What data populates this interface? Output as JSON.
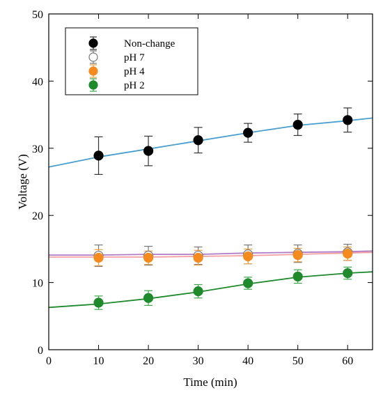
{
  "chart_data": {
    "type": "scatter",
    "xlabel": "Time (min)",
    "ylabel": "Voltage (V)",
    "xlim": [
      0,
      65
    ],
    "ylim": [
      0,
      50
    ],
    "xticks": [
      0,
      10,
      20,
      30,
      40,
      50,
      60
    ],
    "yticks": [
      0,
      10,
      20,
      30,
      40,
      50
    ],
    "grid": false,
    "legend_position": "top-left",
    "series": [
      {
        "name": "Non-change",
        "marker_color": "#000000",
        "errorbar_color": "#333333",
        "fit_color": "#4a9fd0",
        "x": [
          10,
          20,
          30,
          40,
          50,
          60
        ],
        "y": [
          28.9,
          29.6,
          31.2,
          32.3,
          33.5,
          34.2
        ],
        "yerr": [
          2.8,
          2.2,
          1.9,
          1.4,
          1.6,
          1.8
        ],
        "fit": [
          [
            0,
            27.2
          ],
          [
            10,
            28.7
          ],
          [
            20,
            29.9
          ],
          [
            30,
            31.1
          ],
          [
            40,
            32.3
          ],
          [
            50,
            33.4
          ],
          [
            60,
            34.1
          ],
          [
            65,
            34.5
          ]
        ]
      },
      {
        "name": "pH 7",
        "marker_color": "#ffffff",
        "errorbar_color": "#777777",
        "fit_color": "#b07cc6",
        "x": [
          10,
          20,
          30,
          40,
          50,
          60
        ],
        "y": [
          14.0,
          14.0,
          14.0,
          14.2,
          14.3,
          14.5
        ],
        "yerr": [
          1.6,
          1.4,
          1.3,
          1.4,
          1.3,
          1.2
        ],
        "fit": [
          [
            0,
            14.1
          ],
          [
            10,
            14.1
          ],
          [
            20,
            14.2
          ],
          [
            30,
            14.2
          ],
          [
            40,
            14.4
          ],
          [
            50,
            14.5
          ],
          [
            60,
            14.6
          ],
          [
            65,
            14.7
          ]
        ]
      },
      {
        "name": "pH 4",
        "marker_color": "#f58a1f",
        "errorbar_color": "#f0a040",
        "fit_color": "#f5a0a0",
        "x": [
          10,
          20,
          30,
          40,
          50,
          60
        ],
        "y": [
          13.7,
          13.7,
          13.7,
          13.9,
          14.1,
          14.3
        ],
        "yerr": [
          1.2,
          1.0,
          1.1,
          1.1,
          1.0,
          1.0
        ],
        "fit": [
          [
            0,
            13.8
          ],
          [
            10,
            13.8
          ],
          [
            20,
            13.8
          ],
          [
            30,
            13.9
          ],
          [
            40,
            14.0
          ],
          [
            50,
            14.2
          ],
          [
            60,
            14.4
          ],
          [
            65,
            14.5
          ]
        ]
      },
      {
        "name": "pH 2",
        "marker_color": "#1e8a2c",
        "errorbar_color": "#3aa84a",
        "fit_color": "#1e8a2c",
        "x": [
          10,
          20,
          30,
          40,
          50,
          60
        ],
        "y": [
          7.0,
          7.7,
          8.7,
          9.9,
          10.9,
          11.4
        ],
        "yerr": [
          1.0,
          1.1,
          1.0,
          0.9,
          1.0,
          0.9
        ],
        "fit": [
          [
            0,
            6.3
          ],
          [
            10,
            6.8
          ],
          [
            20,
            7.6
          ],
          [
            30,
            8.6
          ],
          [
            40,
            9.8
          ],
          [
            50,
            10.8
          ],
          [
            60,
            11.4
          ],
          [
            65,
            11.6
          ]
        ]
      }
    ]
  }
}
